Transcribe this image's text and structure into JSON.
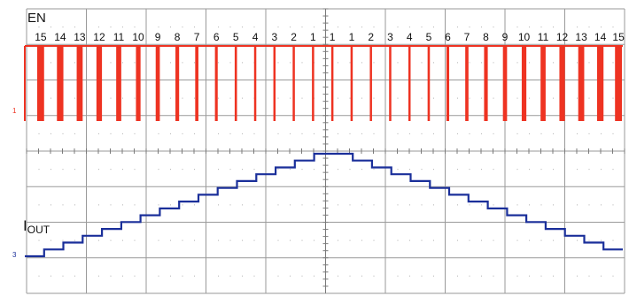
{
  "title": "",
  "colors": {
    "background": "#ffffff",
    "grid": "#9a9a9a",
    "grid_dots": "#b0b0b0",
    "en_trace": "#ee3322",
    "iout_trace": "#1a2f9a",
    "en_marker": "#ee3322",
    "iout_marker": "#1a2f9a"
  },
  "channels": {
    "en": {
      "label": "EN",
      "marker": "1"
    },
    "iout": {
      "label_main": "I",
      "label_sub": "OUT",
      "marker": "3"
    }
  },
  "chart_data": {
    "type": "line",
    "series": [
      {
        "name": "EN",
        "pulse_counts": [
          15,
          14,
          13,
          12,
          11,
          10,
          9,
          8,
          7,
          6,
          5,
          4,
          3,
          2,
          1,
          1,
          1,
          2,
          3,
          4,
          5,
          6,
          7,
          8,
          9,
          10,
          11,
          12,
          13,
          14,
          15
        ]
      },
      {
        "name": "IOUT",
        "steps": [
          0,
          1,
          2,
          3,
          4,
          5,
          6,
          7,
          8,
          9,
          10,
          11,
          12,
          13,
          14,
          15,
          15,
          14,
          13,
          12,
          11,
          10,
          9,
          8,
          7,
          6,
          5,
          4,
          3,
          2,
          1
        ]
      }
    ],
    "grid": true,
    "divisions": {
      "x": 10,
      "y": 8
    }
  }
}
